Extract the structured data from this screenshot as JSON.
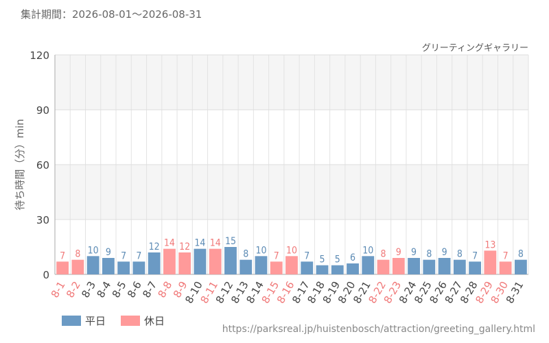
{
  "period_label": "集計期間：2026-08-01～2026-08-31",
  "source_url": "https://parksreal.jp/huistenbosch/attraction/greeting_gallery.html",
  "colors": {
    "weekday": "#6b9ac4",
    "holiday": "#ff9a9a",
    "weekday_text": "#5b8ab4",
    "holiday_text": "#f07878",
    "axis_text": "#444444"
  },
  "chart_data": {
    "type": "bar",
    "title": "グリーティングギャラリー",
    "ylabel": "待ち時間（分）min",
    "xlabel": "",
    "ylim": [
      0,
      120
    ],
    "yticks": [
      0,
      30,
      60,
      90,
      120
    ],
    "grid": true,
    "legend_position": "bottom-left",
    "legend": [
      {
        "key": "weekday",
        "label": "平日"
      },
      {
        "key": "holiday",
        "label": "休日"
      }
    ],
    "categories": [
      "8-1",
      "8-2",
      "8-3",
      "8-4",
      "8-5",
      "8-6",
      "8-7",
      "8-8",
      "8-9",
      "8-10",
      "8-11",
      "8-12",
      "8-13",
      "8-14",
      "8-15",
      "8-16",
      "8-17",
      "8-18",
      "8-19",
      "8-20",
      "8-21",
      "8-22",
      "8-23",
      "8-24",
      "8-25",
      "8-26",
      "8-27",
      "8-28",
      "8-29",
      "8-30",
      "8-31"
    ],
    "values": [
      7,
      8,
      10,
      9,
      7,
      7,
      12,
      14,
      12,
      14,
      14,
      15,
      8,
      10,
      7,
      10,
      7,
      5,
      5,
      6,
      10,
      8,
      9,
      9,
      8,
      9,
      8,
      7,
      13,
      7,
      8
    ],
    "day_type": [
      "holiday",
      "holiday",
      "weekday",
      "weekday",
      "weekday",
      "weekday",
      "weekday",
      "holiday",
      "holiday",
      "weekday",
      "holiday",
      "weekday",
      "weekday",
      "weekday",
      "holiday",
      "holiday",
      "weekday",
      "weekday",
      "weekday",
      "weekday",
      "weekday",
      "holiday",
      "holiday",
      "weekday",
      "weekday",
      "weekday",
      "weekday",
      "weekday",
      "holiday",
      "holiday",
      "weekday"
    ]
  }
}
